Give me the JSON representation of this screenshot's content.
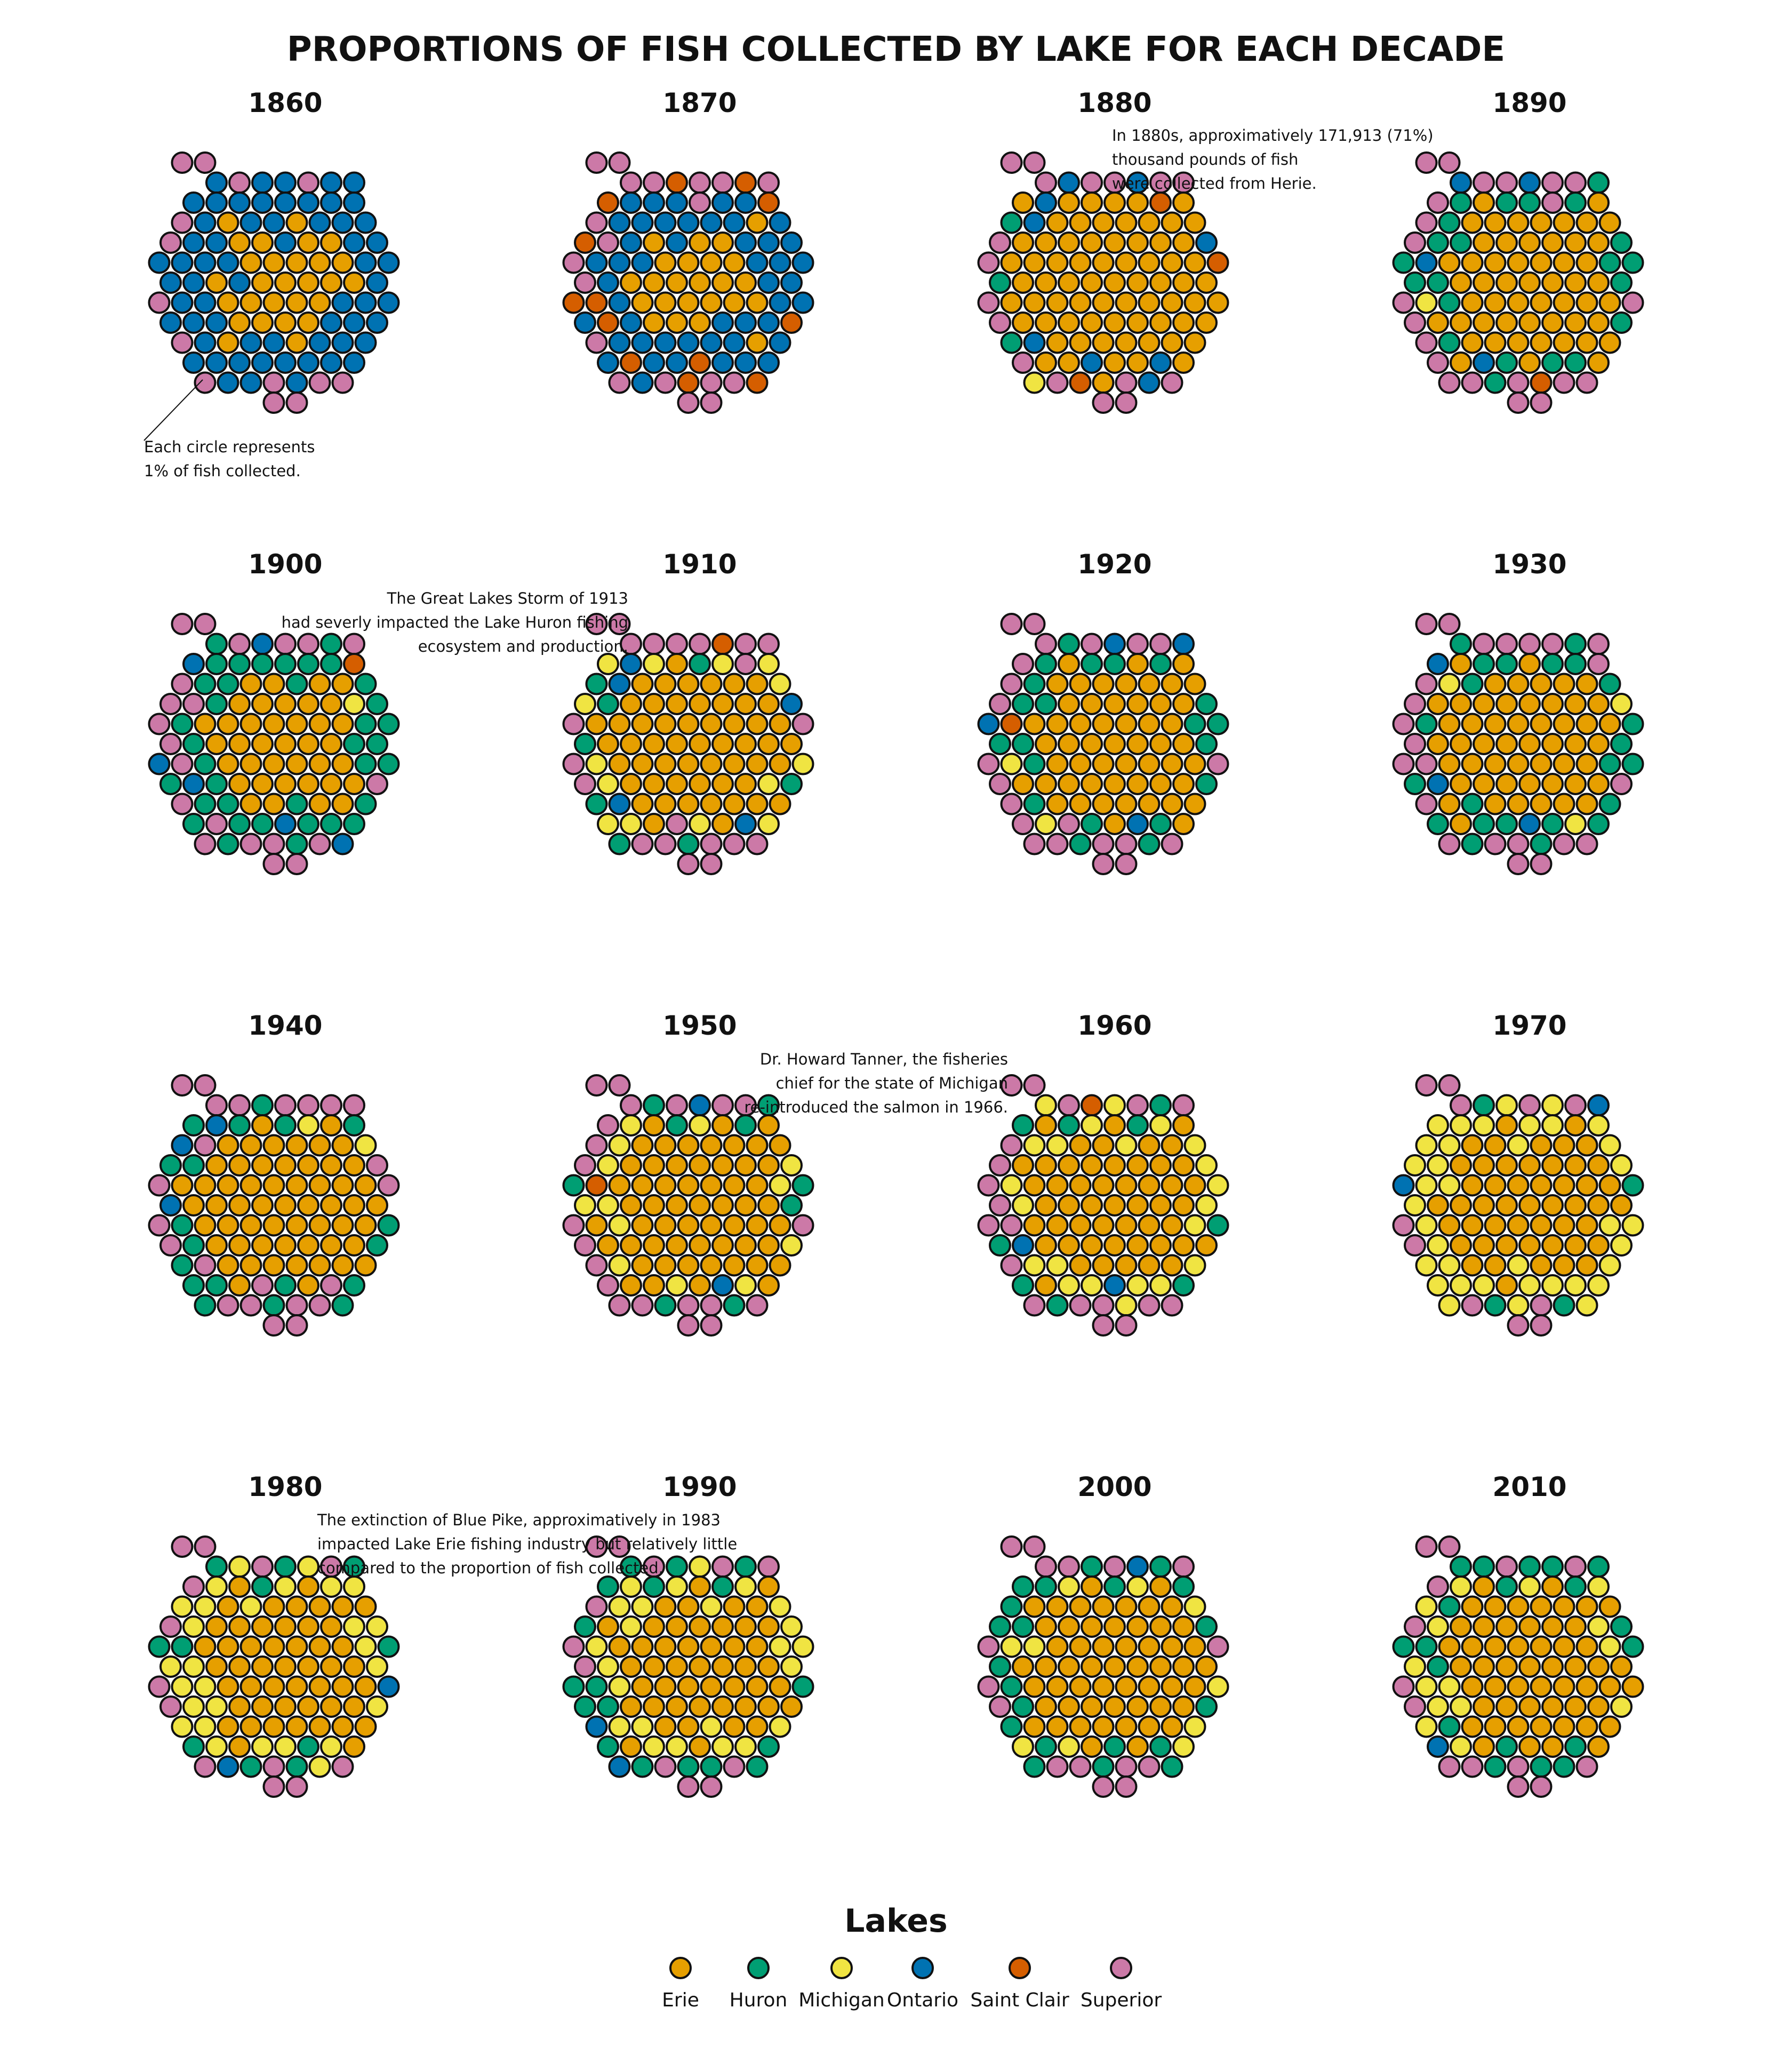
{
  "chart_data": {
    "type": "waffle",
    "title": "PROPORTIONS OF FISH COLLECTED BY LAKE FOR EACH DECADE",
    "unit_note": "Each  circle represents 1% of fish collected.",
    "lakes": [
      "Erie",
      "Huron",
      "Michigan",
      "Ontario",
      "Saint Clair",
      "Superior"
    ],
    "colors": {
      "Erie": "#E69F00",
      "Huron": "#009E73",
      "Michigan": "#F0E442",
      "Ontario": "#0072B2",
      "Saint Clair": "#D55E00",
      "Superior": "#CC79A7"
    },
    "decades": [
      {
        "decade": "1860",
        "Erie": 28,
        "Huron": 0,
        "Michigan": 0,
        "Ontario": 62,
        "Saint Clair": 0,
        "Superior": 10
      },
      {
        "decade": "1870",
        "Erie": 24,
        "Huron": 0,
        "Michigan": 0,
        "Ontario": 48,
        "Saint Clair": 13,
        "Superior": 15
      },
      {
        "decade": "1880",
        "Erie": 71,
        "Huron": 3,
        "Michigan": 1,
        "Ontario": 9,
        "Saint Clair": 3,
        "Superior": 13
      },
      {
        "decade": "1890",
        "Erie": 54,
        "Huron": 22,
        "Michigan": 1,
        "Ontario": 4,
        "Saint Clair": 1,
        "Superior": 18
      },
      {
        "decade": "1900",
        "Erie": 38,
        "Huron": 37,
        "Michigan": 1,
        "Ontario": 6,
        "Saint Clair": 1,
        "Superior": 17
      },
      {
        "decade": "1910",
        "Erie": 55,
        "Huron": 8,
        "Michigan": 14,
        "Ontario": 5,
        "Saint Clair": 1,
        "Superior": 17
      },
      {
        "decade": "1920",
        "Erie": 54,
        "Huron": 21,
        "Michigan": 2,
        "Ontario": 4,
        "Saint Clair": 1,
        "Superior": 18
      },
      {
        "decade": "1930",
        "Erie": 52,
        "Huron": 23,
        "Michigan": 3,
        "Ontario": 3,
        "Saint Clair": 0,
        "Superior": 19
      },
      {
        "decade": "1940",
        "Erie": 57,
        "Huron": 19,
        "Michigan": 2,
        "Ontario": 3,
        "Saint Clair": 0,
        "Superior": 19
      },
      {
        "decade": "1950",
        "Erie": 58,
        "Huron": 9,
        "Michigan": 13,
        "Ontario": 2,
        "Saint Clair": 1,
        "Superior": 17
      },
      {
        "decade": "1960",
        "Erie": 51,
        "Huron": 9,
        "Michigan": 22,
        "Ontario": 2,
        "Saint Clair": 1,
        "Superior": 15
      },
      {
        "decade": "1970",
        "Erie": 50,
        "Huron": 4,
        "Michigan": 37,
        "Ontario": 2,
        "Saint Clair": 0,
        "Superior": 7
      },
      {
        "decade": "1980",
        "Erie": 50,
        "Huron": 11,
        "Michigan": 28,
        "Ontario": 2,
        "Saint Clair": 0,
        "Superior": 9
      },
      {
        "decade": "1990",
        "Erie": 48,
        "Huron": 18,
        "Michigan": 24,
        "Ontario": 2,
        "Saint Clair": 0,
        "Superior": 8
      },
      {
        "decade": "2000",
        "Erie": 56,
        "Huron": 21,
        "Michigan": 10,
        "Ontario": 1,
        "Saint Clair": 0,
        "Superior": 12
      },
      {
        "decade": "2010",
        "Erie": 55,
        "Huron": 19,
        "Michigan": 15,
        "Ontario": 1,
        "Saint Clair": 0,
        "Superior": 10
      }
    ],
    "annotations": [
      {
        "decade": "1860",
        "lines": [
          "Each  circle represents",
          "1% of fish collected."
        ]
      },
      {
        "decade": "1880",
        "lines": [
          "In 1880s, approximatively 171,913 (71%)",
          "thousand pounds of fish",
          "were collected from Herie."
        ]
      },
      {
        "decade": "1910",
        "lines": [
          "The Great Lakes Storm of 1913",
          "had severly impacted the Lake Huron fishing",
          "ecosystem and production."
        ]
      },
      {
        "decade": "1960",
        "lines": [
          "Dr. Howard Tanner, the  fisheries",
          "chief  for the state of Michigan",
          "re-introduced the salmon in 1966."
        ]
      },
      {
        "decade": "1990",
        "lines": [
          "The extinction of Blue Pike, approximatively in 1983",
          "impacted Lake Erie fishing industry but relatively little",
          "compared to the proportion of fish collected."
        ]
      }
    ],
    "legend_title": "Lakes",
    "legend_position": "bottom-center"
  }
}
